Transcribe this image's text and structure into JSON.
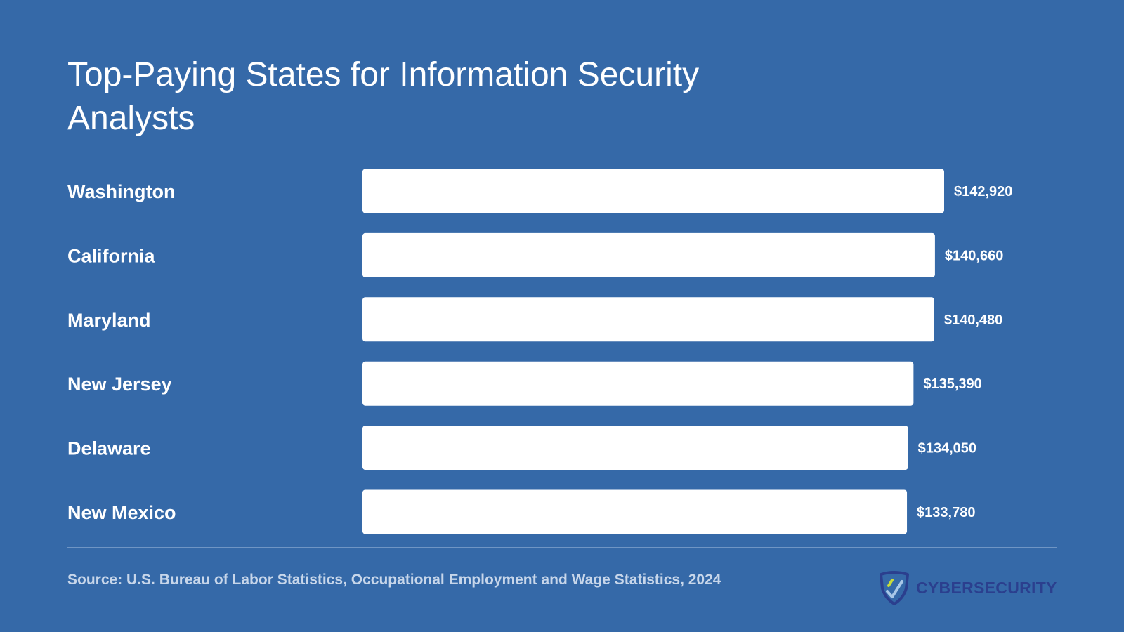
{
  "chart_data": {
    "type": "bar",
    "orientation": "horizontal",
    "title": "Top-Paying States for Information Security Analysts",
    "categories": [
      "Washington",
      "California",
      "Maryland",
      "New Jersey",
      "Delaware",
      "New Mexico"
    ],
    "values": [
      142920,
      140660,
      140480,
      135390,
      134050,
      133780
    ],
    "value_labels": [
      "$142,920",
      "$140,660",
      "$140,480",
      "$135,390",
      "$134,050",
      "$133,780"
    ],
    "xlim": [
      0,
      142920
    ],
    "grid": false,
    "legend": "none",
    "bar_color": "#ffffff"
  },
  "source": "Source: U.S. Bureau of Labor Statistics, Occupational Employment and Wage Statistics, 2024",
  "logo": {
    "text": "CYBERSECURITY",
    "icon": "shield-icon"
  },
  "colors": {
    "background": "#3569a8",
    "bar": "#ffffff",
    "text": "#ffffff",
    "source_text": "#c7d6ea",
    "logo_text": "#2b3f8e"
  }
}
